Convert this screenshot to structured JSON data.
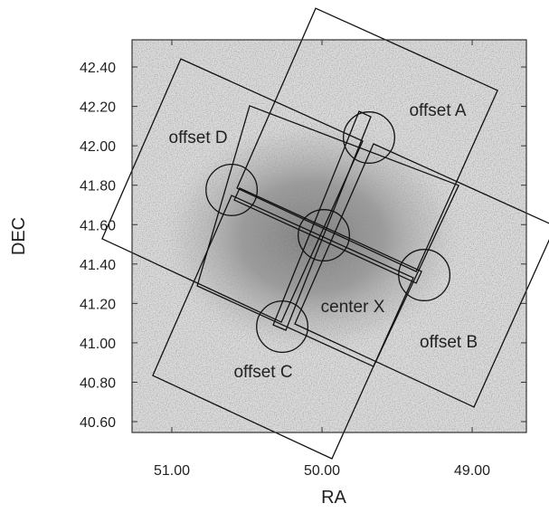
{
  "chart_data": {
    "type": "field-overlay",
    "x_label": "RA",
    "y_label": "DEC",
    "xlim": [
      51.265,
      48.639
    ],
    "ylim": [
      40.545,
      42.538
    ],
    "xticks": [
      {
        "value": 51,
        "label": "51.00"
      },
      {
        "value": 50,
        "label": "50.00"
      },
      {
        "value": 49,
        "label": "49.00"
      }
    ],
    "yticks": [
      {
        "value": 40.6,
        "label": "40.60"
      },
      {
        "value": 40.8,
        "label": "40.80"
      },
      {
        "value": 41.0,
        "label": "41.00"
      },
      {
        "value": 41.2,
        "label": "41.20"
      },
      {
        "value": 41.4,
        "label": "41.40"
      },
      {
        "value": 41.6,
        "label": "41.60"
      },
      {
        "value": 41.8,
        "label": "41.80"
      },
      {
        "value": 42.0,
        "label": "42.00"
      },
      {
        "value": 42.2,
        "label": "42.20"
      },
      {
        "value": 42.4,
        "label": "42.40"
      }
    ],
    "circle_radius": 0.13,
    "color": "#111111",
    "fields": [
      {
        "label": "center X",
        "center": [
          49.988,
          41.546
        ],
        "corners": [
          [
            50.482,
            42.203
          ],
          [
            49.09,
            41.799
          ],
          [
            49.657,
            40.88
          ],
          [
            50.831,
            41.289
          ]
        ]
      },
      {
        "label": "offset A",
        "center": [
          49.687,
          42.042
        ],
        "corners": [
          [
            50.042,
            42.698
          ],
          [
            48.831,
            42.281
          ],
          [
            49.373,
            41.362
          ],
          [
            50.566,
            41.785
          ]
        ]
      },
      {
        "label": "offset B",
        "center": [
          49.319,
          41.344
        ],
        "corners": [
          [
            49.657,
            42.01
          ],
          [
            48.446,
            41.592
          ],
          [
            48.988,
            40.674
          ],
          [
            50.181,
            41.096
          ]
        ]
      },
      {
        "label": "offset C",
        "center": [
          50.265,
          41.082
        ],
        "corners": [
          [
            50.602,
            41.748
          ],
          [
            49.392,
            41.33
          ],
          [
            49.934,
            40.412
          ],
          [
            51.127,
            40.834
          ]
        ]
      },
      {
        "label": "offset D",
        "center": [
          50.602,
          41.776
        ],
        "corners": [
          [
            50.94,
            42.441
          ],
          [
            49.729,
            42.024
          ],
          [
            50.271,
            41.105
          ],
          [
            51.464,
            41.528
          ]
        ]
      }
    ],
    "strips": [
      [
        [
          49.675,
          42.147
        ],
        [
          49.753,
          42.175
        ],
        [
          50.325,
          41.091
        ],
        [
          50.241,
          41.064
        ]
      ],
      [
        [
          50.548,
          41.785
        ],
        [
          49.337,
          41.362
        ],
        [
          49.373,
          41.303
        ],
        [
          50.584,
          41.725
        ]
      ]
    ]
  }
}
